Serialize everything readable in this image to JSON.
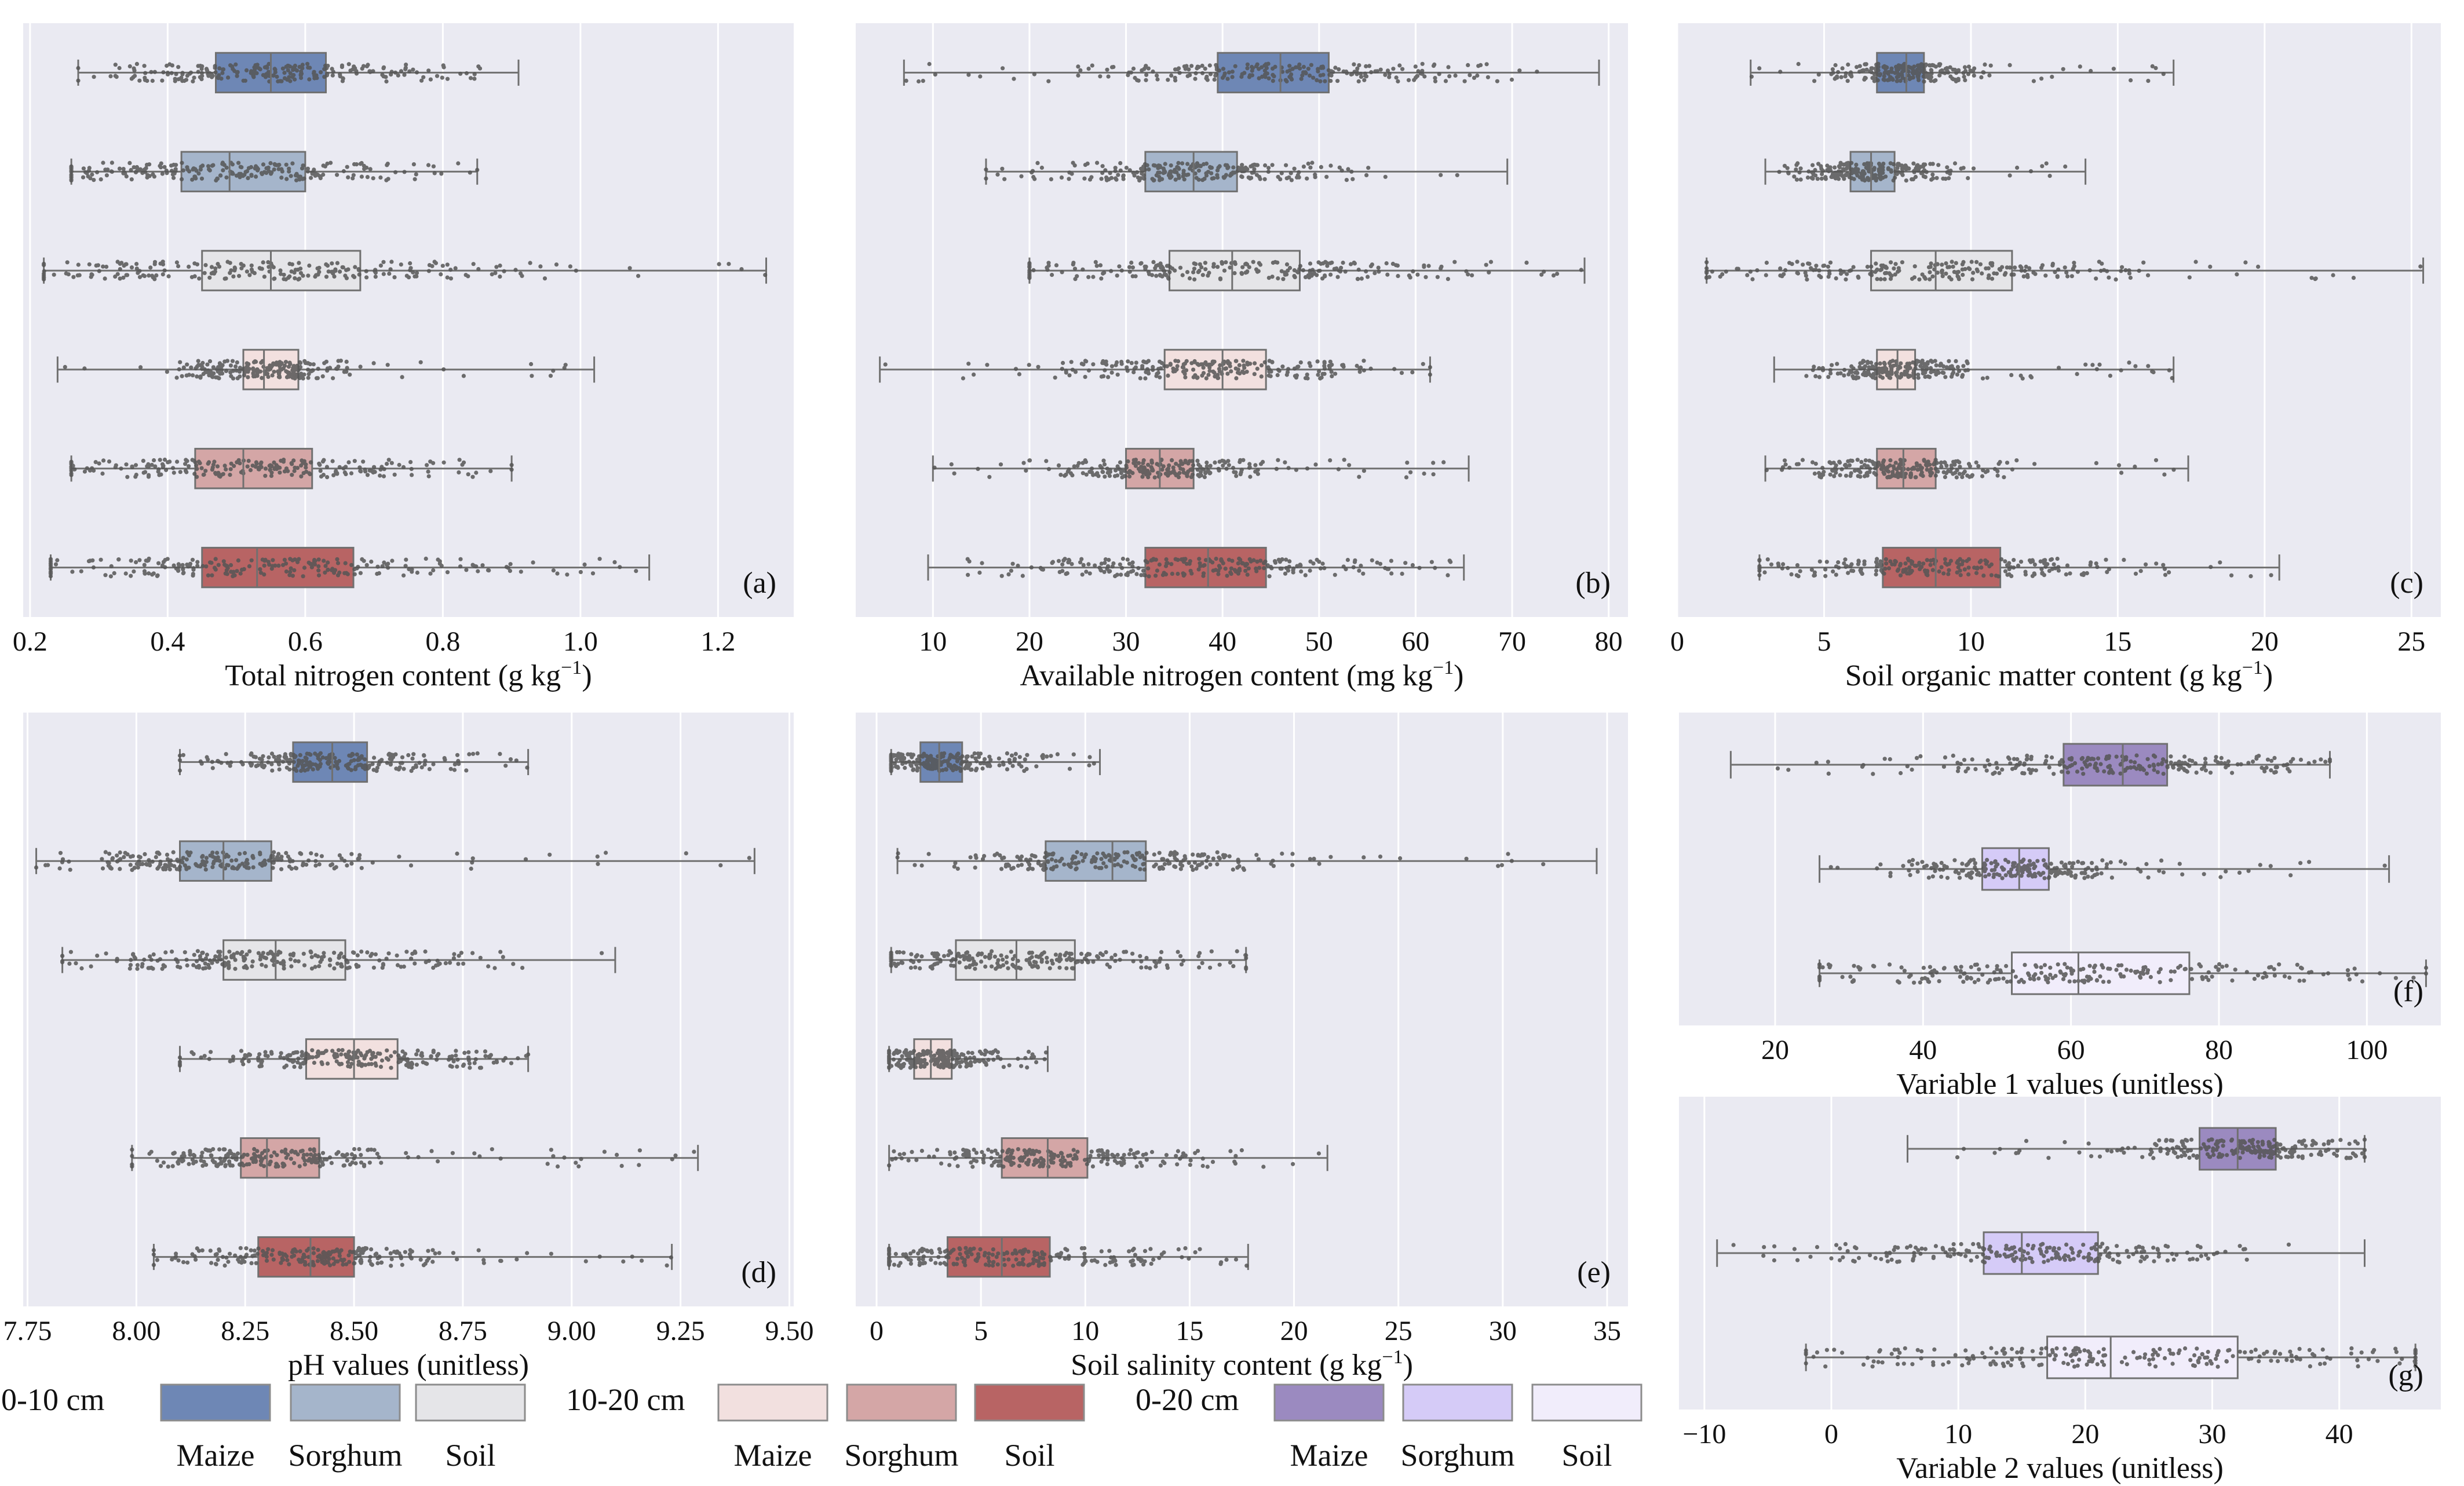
{
  "figure": {
    "legend": {
      "groups": [
        {
          "title": "0-10 cm",
          "items": [
            {
              "label": "Maize",
              "color": "#6e87b5"
            },
            {
              "label": "Sorghum",
              "color": "#a5b5cb"
            },
            {
              "label": "Soil",
              "color": "#e5e5e8"
            }
          ]
        },
        {
          "title": "10-20 cm",
          "items": [
            {
              "label": "Maize",
              "color": "#f2e0df"
            },
            {
              "label": "Sorghum",
              "color": "#d4a6a6"
            },
            {
              "label": "Soil",
              "color": "#b86464"
            }
          ]
        },
        {
          "title": "0-20 cm",
          "items": [
            {
              "label": "Maize",
              "color": "#9b8ac0"
            },
            {
              "label": "Sorghum",
              "color": "#d5cbf7"
            },
            {
              "label": "Soil",
              "color": "#f1edfb"
            }
          ]
        }
      ]
    }
  },
  "chart_data": [
    {
      "id": "a",
      "type": "box",
      "panel_label": "(a)",
      "xlabel": "Total nitrogen content (g kg",
      "xlabel_sup": "−1",
      "xlabel_end": ")",
      "xlim": [
        0.19,
        1.31
      ],
      "ticks": [
        0.2,
        0.4,
        0.6,
        0.8,
        1.0,
        1.2
      ],
      "tick_labels": [
        "0.2",
        "0.4",
        "0.6",
        "0.8",
        "1.0",
        "1.2"
      ],
      "groups": [
        {
          "name": "0-10 cm Maize",
          "color": "#6e87b5",
          "min": 0.27,
          "q1": 0.47,
          "median": 0.55,
          "q3": 0.63,
          "max": 0.91
        },
        {
          "name": "0-10 cm Sorghum",
          "color": "#a5b5cb",
          "min": 0.26,
          "q1": 0.42,
          "median": 0.49,
          "q3": 0.6,
          "max": 0.85
        },
        {
          "name": "0-10 cm Soil",
          "color": "#e5e5e8",
          "min": 0.22,
          "q1": 0.45,
          "median": 0.55,
          "q3": 0.68,
          "max": 1.27
        },
        {
          "name": "10-20 cm Maize",
          "color": "#f2e0df",
          "min": 0.24,
          "q1": 0.51,
          "median": 0.54,
          "q3": 0.59,
          "max": 1.02
        },
        {
          "name": "10-20 cm Sorghum",
          "color": "#d4a6a6",
          "min": 0.26,
          "q1": 0.44,
          "median": 0.51,
          "q3": 0.61,
          "max": 0.9
        },
        {
          "name": "10-20 cm Soil",
          "color": "#b86464",
          "min": 0.23,
          "q1": 0.45,
          "median": 0.53,
          "q3": 0.67,
          "max": 1.1
        }
      ]
    },
    {
      "id": "b",
      "type": "box",
      "panel_label": "(b)",
      "xlabel": "Available nitrogen content (mg kg",
      "xlabel_sup": "−1",
      "xlabel_end": ")",
      "xlim": [
        2,
        82
      ],
      "ticks": [
        10,
        20,
        30,
        40,
        50,
        60,
        70,
        80
      ],
      "tick_labels": [
        "10",
        "20",
        "30",
        "40",
        "50",
        "60",
        "70",
        "80"
      ],
      "groups": [
        {
          "name": "0-10 cm Maize",
          "color": "#6e87b5",
          "min": 7,
          "q1": 39.5,
          "median": 46,
          "q3": 51,
          "max": 79
        },
        {
          "name": "0-10 cm Sorghum",
          "color": "#a5b5cb",
          "min": 15.5,
          "q1": 32,
          "median": 37,
          "q3": 41.5,
          "max": 69.5
        },
        {
          "name": "0-10 cm Soil",
          "color": "#e5e5e8",
          "min": 20,
          "q1": 34.5,
          "median": 41,
          "q3": 48,
          "max": 77.5
        },
        {
          "name": "10-20 cm Maize",
          "color": "#f2e0df",
          "min": 4.5,
          "q1": 34,
          "median": 40,
          "q3": 44.5,
          "max": 61.5
        },
        {
          "name": "10-20 cm Sorghum",
          "color": "#d4a6a6",
          "min": 10,
          "q1": 30,
          "median": 33.5,
          "q3": 37,
          "max": 65.5
        },
        {
          "name": "10-20 cm Soil",
          "color": "#b86464",
          "min": 9.5,
          "q1": 32,
          "median": 38.5,
          "q3": 44.5,
          "max": 65
        }
      ]
    },
    {
      "id": "c",
      "type": "box",
      "panel_label": "(c)",
      "xlabel": "Soil organic matter content (g kg",
      "xlabel_sup": "−1",
      "xlabel_end": ")",
      "xlim": [
        0,
        26
      ],
      "ticks": [
        0,
        5,
        10,
        15,
        20,
        25
      ],
      "tick_labels": [
        "0",
        "5",
        "10",
        "15",
        "20",
        "25"
      ],
      "groups": [
        {
          "name": "0-10 cm Maize",
          "color": "#6e87b5",
          "min": 2.5,
          "q1": 6.8,
          "median": 7.8,
          "q3": 8.4,
          "max": 16.9
        },
        {
          "name": "0-10 cm Sorghum",
          "color": "#a5b5cb",
          "min": 3.0,
          "q1": 5.9,
          "median": 6.6,
          "q3": 7.4,
          "max": 13.9
        },
        {
          "name": "0-10 cm Soil",
          "color": "#e5e5e8",
          "min": 1.0,
          "q1": 6.6,
          "median": 8.8,
          "q3": 11.4,
          "max": 25.4
        },
        {
          "name": "10-20 cm Maize",
          "color": "#f2e0df",
          "min": 3.3,
          "q1": 6.8,
          "median": 7.5,
          "q3": 8.1,
          "max": 16.9
        },
        {
          "name": "10-20 cm Sorghum",
          "color": "#d4a6a6",
          "min": 3.0,
          "q1": 6.8,
          "median": 7.7,
          "q3": 8.8,
          "max": 17.4
        },
        {
          "name": "10-20 cm Soil",
          "color": "#b86464",
          "min": 2.8,
          "q1": 7.0,
          "median": 8.8,
          "q3": 11.0,
          "max": 20.5
        }
      ]
    },
    {
      "id": "d",
      "type": "box",
      "panel_label": "(d)",
      "xlabel": "pH values (unitless)",
      "xlabel_sup": "",
      "xlabel_end": "",
      "xlim": [
        7.74,
        9.51
      ],
      "ticks": [
        7.75,
        8.0,
        8.25,
        8.5,
        8.75,
        9.0,
        9.25,
        9.5
      ],
      "tick_labels": [
        "7.75",
        "8.00",
        "8.25",
        "8.50",
        "8.75",
        "9.00",
        "9.25",
        "9.50"
      ],
      "groups": [
        {
          "name": "0-10 cm Maize",
          "color": "#6e87b5",
          "min": 8.1,
          "q1": 8.36,
          "median": 8.45,
          "q3": 8.53,
          "max": 8.9
        },
        {
          "name": "0-10 cm Sorghum",
          "color": "#a5b5cb",
          "min": 7.77,
          "q1": 8.1,
          "median": 8.2,
          "q3": 8.31,
          "max": 9.42
        },
        {
          "name": "0-10 cm Soil",
          "color": "#e5e5e8",
          "min": 7.83,
          "q1": 8.2,
          "median": 8.32,
          "q3": 8.48,
          "max": 9.1
        },
        {
          "name": "10-20 cm Maize",
          "color": "#f2e0df",
          "min": 8.1,
          "q1": 8.39,
          "median": 8.5,
          "q3": 8.6,
          "max": 8.9
        },
        {
          "name": "10-20 cm Sorghum",
          "color": "#d4a6a6",
          "min": 7.99,
          "q1": 8.24,
          "median": 8.3,
          "q3": 8.42,
          "max": 9.29
        },
        {
          "name": "10-20 cm Soil",
          "color": "#b86464",
          "min": 8.04,
          "q1": 8.28,
          "median": 8.4,
          "q3": 8.5,
          "max": 9.23
        }
      ]
    },
    {
      "id": "e",
      "type": "box",
      "panel_label": "(e)",
      "xlabel": "Soil salinity content (g kg",
      "xlabel_sup": "−1",
      "xlabel_end": ")",
      "xlim": [
        -1,
        36
      ],
      "ticks": [
        0,
        5,
        10,
        15,
        20,
        25,
        30,
        35
      ],
      "tick_labels": [
        "0",
        "5",
        "10",
        "15",
        "20",
        "25",
        "30",
        "35"
      ],
      "groups": [
        {
          "name": "0-10 cm Maize",
          "color": "#6e87b5",
          "min": 0.7,
          "q1": 2.1,
          "median": 3.0,
          "q3": 4.1,
          "max": 10.7
        },
        {
          "name": "0-10 cm Sorghum",
          "color": "#a5b5cb",
          "min": 1.0,
          "q1": 8.1,
          "median": 11.3,
          "q3": 12.9,
          "max": 34.5
        },
        {
          "name": "0-10 cm Soil",
          "color": "#e5e5e8",
          "min": 0.7,
          "q1": 3.8,
          "median": 6.7,
          "q3": 9.5,
          "max": 17.7
        },
        {
          "name": "10-20 cm Maize",
          "color": "#f2e0df",
          "min": 0.6,
          "q1": 1.8,
          "median": 2.6,
          "q3": 3.6,
          "max": 8.2
        },
        {
          "name": "10-20 cm Sorghum",
          "color": "#d4a6a6",
          "min": 0.6,
          "q1": 6.0,
          "median": 8.2,
          "q3": 10.1,
          "max": 21.6
        },
        {
          "name": "10-20 cm Soil",
          "color": "#b86464",
          "min": 0.6,
          "q1": 3.4,
          "median": 6.0,
          "q3": 8.3,
          "max": 17.8
        }
      ]
    },
    {
      "id": "f",
      "type": "box",
      "panel_label": "(f)",
      "xlabel": "Variable 1 values (unitless)",
      "xlabel_sup": "",
      "xlabel_end": "",
      "xlim": [
        7,
        110
      ],
      "ticks": [
        20,
        40,
        60,
        80,
        100
      ],
      "tick_labels": [
        "20",
        "40",
        "60",
        "80",
        "100"
      ],
      "groups": [
        {
          "name": "0-20 cm Maize",
          "color": "#9b8ac0",
          "min": 14,
          "q1": 59,
          "median": 67,
          "q3": 73,
          "max": 95
        },
        {
          "name": "0-20 cm Sorghum",
          "color": "#d5cbf7",
          "min": 26,
          "q1": 48,
          "median": 53,
          "q3": 57,
          "max": 103
        },
        {
          "name": "0-20 cm Soil",
          "color": "#f1edfb",
          "min": 26,
          "q1": 52,
          "median": 61,
          "q3": 76,
          "max": 108
        }
      ]
    },
    {
      "id": "g",
      "type": "box",
      "panel_label": "(g)",
      "xlabel": "Variable 2 values (unitless)",
      "xlabel_sup": "",
      "xlabel_end": "",
      "xlim": [
        -12,
        48
      ],
      "ticks": [
        -10,
        0,
        10,
        20,
        30,
        40
      ],
      "tick_labels": [
        "−10",
        "0",
        "10",
        "20",
        "30",
        "40"
      ],
      "groups": [
        {
          "name": "0-20 cm Maize",
          "color": "#9b8ac0",
          "min": 6,
          "q1": 29,
          "median": 32,
          "q3": 35,
          "max": 42
        },
        {
          "name": "0-20 cm Sorghum",
          "color": "#d5cbf7",
          "min": -9,
          "q1": 12,
          "median": 15,
          "q3": 21,
          "max": 42
        },
        {
          "name": "0-20 cm Soil",
          "color": "#f1edfb",
          "min": -2,
          "q1": 17,
          "median": 22,
          "q3": 32,
          "max": 46
        }
      ]
    }
  ]
}
